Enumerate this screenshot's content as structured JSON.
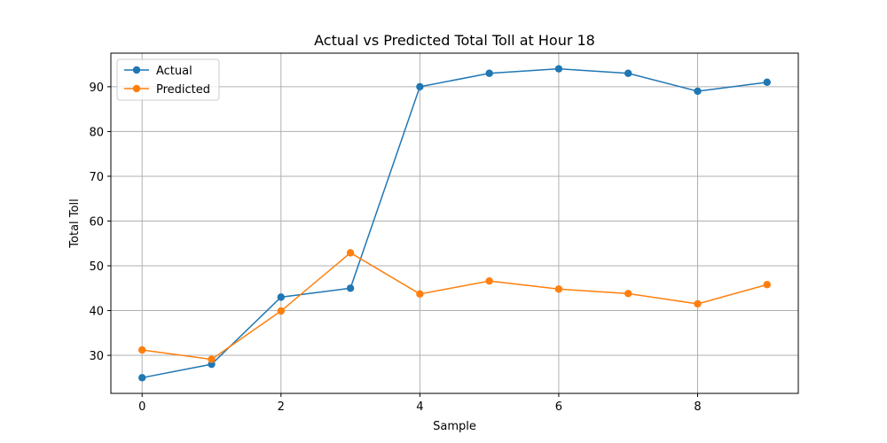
{
  "chart_data": {
    "type": "line",
    "title": "Actual vs Predicted Total Toll at Hour 18",
    "xlabel": "Sample",
    "ylabel": "Total Toll",
    "x": [
      0,
      1,
      2,
      3,
      4,
      5,
      6,
      7,
      8,
      9
    ],
    "xlim": [
      -0.45,
      9.45
    ],
    "ylim": [
      21.5,
      97.5
    ],
    "xticks": [
      0,
      2,
      4,
      6,
      8
    ],
    "yticks": [
      30,
      40,
      50,
      60,
      70,
      80,
      90
    ],
    "grid": true,
    "legend_position": "top-left",
    "series": [
      {
        "name": "Actual",
        "color": "#1f77b4",
        "marker": "circle",
        "values": [
          25,
          28,
          43,
          45,
          90,
          93,
          94,
          93,
          89,
          91
        ]
      },
      {
        "name": "Predicted",
        "color": "#ff7f0e",
        "marker": "circle",
        "values": [
          31.2,
          29.1,
          39.9,
          52.9,
          43.7,
          46.6,
          44.8,
          43.8,
          41.5,
          45.8
        ]
      }
    ]
  }
}
